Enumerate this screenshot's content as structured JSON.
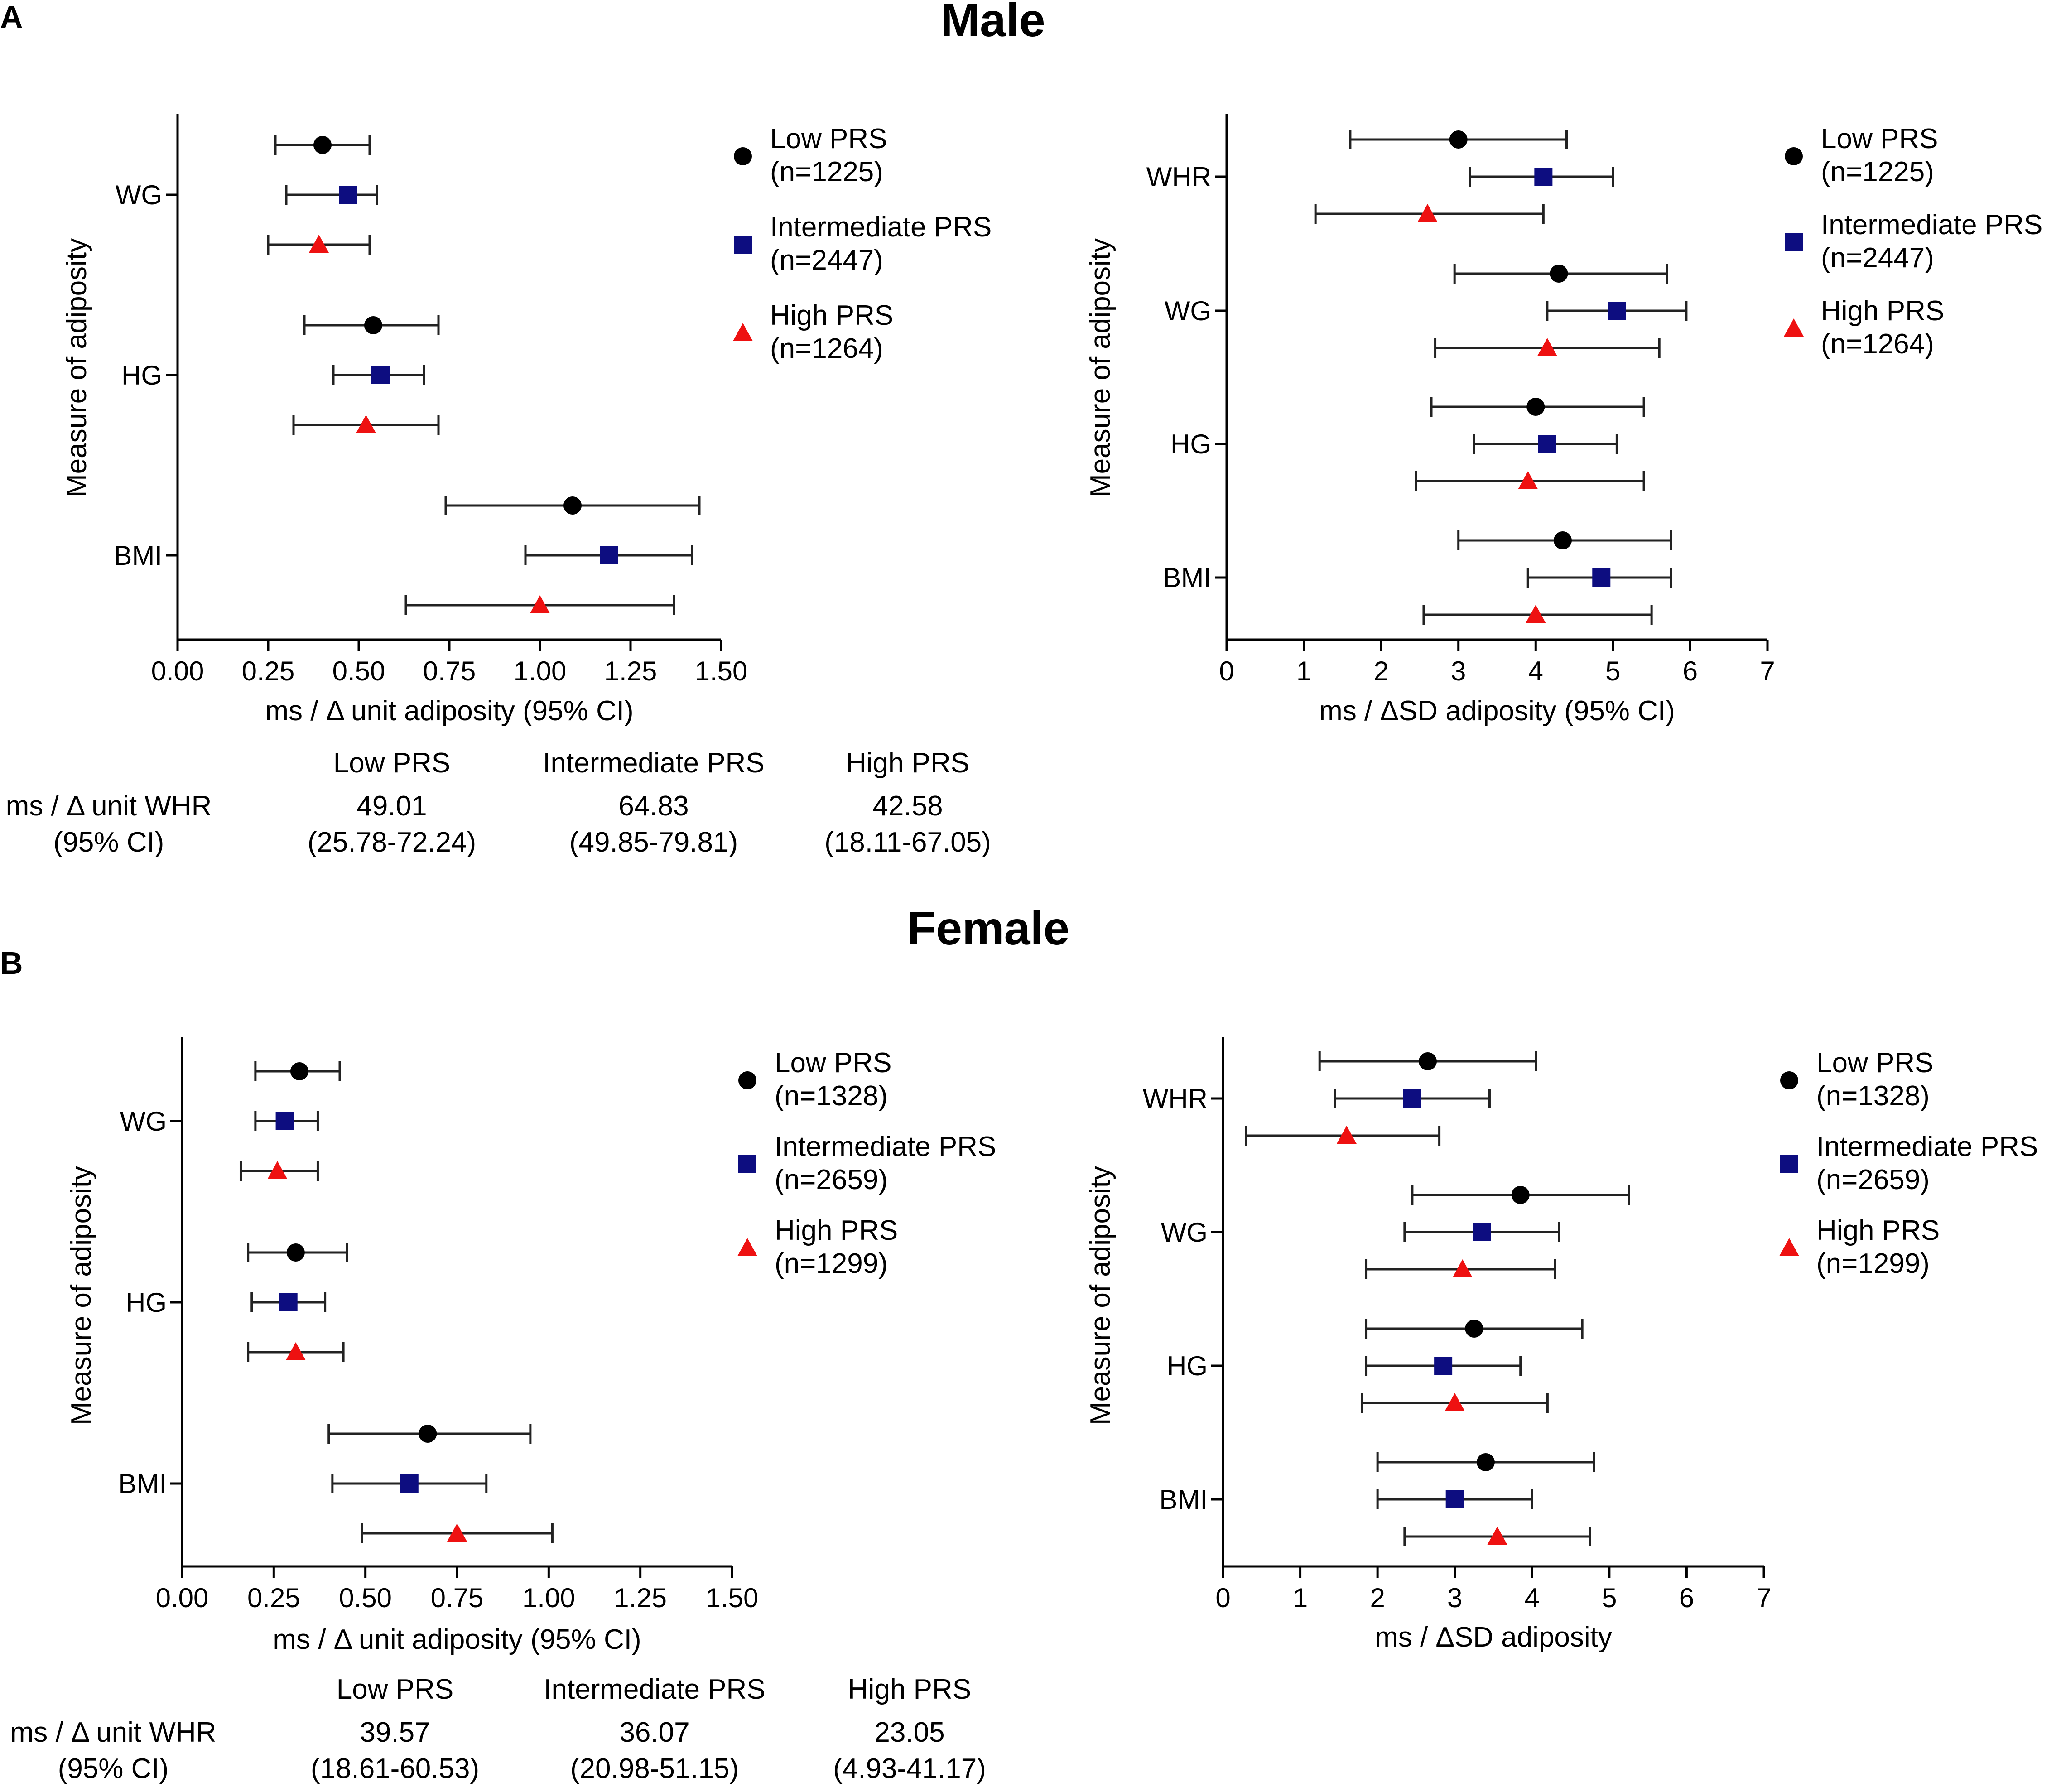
{
  "panels": [
    {
      "letter": "A",
      "title": "Male"
    },
    {
      "letter": "B",
      "title": "Female"
    }
  ],
  "colors": {
    "low": "#000000",
    "intermediate": "#0d0d80",
    "high": "#ee1111"
  },
  "chart_data": [
    {
      "type": "forest",
      "id": "male_unit",
      "title": "Male",
      "xlabel": "ms / Δ unit adiposity (95% CI)",
      "ylabel": "Measure of adiposity",
      "xlim": [
        0,
        1.5
      ],
      "xticks": [
        0,
        0.25,
        0.5,
        0.75,
        1.0,
        1.25,
        1.5
      ],
      "xtick_labels": [
        "0.00",
        "0.25",
        "0.50",
        "0.75",
        "1.00",
        "1.25",
        "1.50"
      ],
      "categories": [
        "WG",
        "HG",
        "BMI"
      ],
      "legend": {
        "position": "right",
        "entries": [
          {
            "group": "low",
            "name": "Low PRS",
            "n": "(n=1225)",
            "marker": "circle"
          },
          {
            "group": "intermediate",
            "name": "Intermediate PRS",
            "n": "(n=2447)",
            "marker": "square"
          },
          {
            "group": "high",
            "name": "High PRS",
            "n": "(n=1264)",
            "marker": "triangle"
          }
        ]
      },
      "series": [
        {
          "group": "low",
          "values": [
            {
              "cat": "WG",
              "est": 0.4,
              "lo": 0.27,
              "hi": 0.53
            },
            {
              "cat": "HG",
              "est": 0.54,
              "lo": 0.35,
              "hi": 0.72
            },
            {
              "cat": "BMI",
              "est": 1.09,
              "lo": 0.74,
              "hi": 1.44
            }
          ]
        },
        {
          "group": "intermediate",
          "values": [
            {
              "cat": "WG",
              "est": 0.47,
              "lo": 0.3,
              "hi": 0.55
            },
            {
              "cat": "HG",
              "est": 0.56,
              "lo": 0.43,
              "hi": 0.68
            },
            {
              "cat": "BMI",
              "est": 1.19,
              "lo": 0.96,
              "hi": 1.42
            }
          ]
        },
        {
          "group": "high",
          "values": [
            {
              "cat": "WG",
              "est": 0.39,
              "lo": 0.25,
              "hi": 0.53
            },
            {
              "cat": "HG",
              "est": 0.52,
              "lo": 0.32,
              "hi": 0.72
            },
            {
              "cat": "BMI",
              "est": 1.0,
              "lo": 0.63,
              "hi": 1.37
            }
          ]
        }
      ],
      "table": {
        "row_label": [
          "ms / Δ unit WHR",
          "(95% CI)"
        ],
        "headers": [
          "Low PRS",
          "Intermediate PRS",
          "High PRS"
        ],
        "values": [
          "49.01",
          "64.83",
          "42.58"
        ],
        "cis": [
          "(25.78-72.24)",
          "(49.85-79.81)",
          "(18.11-67.05)"
        ]
      }
    },
    {
      "type": "forest",
      "id": "male_sd",
      "title": "Male",
      "xlabel": "ms / ΔSD adiposity (95% CI)",
      "ylabel": "Measure of adiposity",
      "xlim": [
        0,
        7
      ],
      "xticks": [
        0,
        1,
        2,
        3,
        4,
        5,
        6,
        7
      ],
      "xtick_labels": [
        "0",
        "1",
        "2",
        "3",
        "4",
        "5",
        "6",
        "7"
      ],
      "categories": [
        "WHR",
        "WG",
        "HG",
        "BMI"
      ],
      "legend": {
        "position": "right",
        "entries": [
          {
            "group": "low",
            "name": "Low PRS",
            "n": "(n=1225)",
            "marker": "circle"
          },
          {
            "group": "intermediate",
            "name": "Intermediate PRS",
            "n": "(n=2447)",
            "marker": "square"
          },
          {
            "group": "high",
            "name": "High PRS",
            "n": "(n=1264)",
            "marker": "triangle"
          }
        ]
      },
      "series": [
        {
          "group": "low",
          "values": [
            {
              "cat": "WHR",
              "est": 3.0,
              "lo": 1.6,
              "hi": 4.4
            },
            {
              "cat": "WG",
              "est": 4.3,
              "lo": 2.95,
              "hi": 5.7
            },
            {
              "cat": "HG",
              "est": 4.0,
              "lo": 2.65,
              "hi": 5.4
            },
            {
              "cat": "BMI",
              "est": 4.35,
              "lo": 3.0,
              "hi": 5.75
            }
          ]
        },
        {
          "group": "intermediate",
          "values": [
            {
              "cat": "WHR",
              "est": 4.1,
              "lo": 3.15,
              "hi": 5.0
            },
            {
              "cat": "WG",
              "est": 5.05,
              "lo": 4.15,
              "hi": 5.95
            },
            {
              "cat": "HG",
              "est": 4.15,
              "lo": 3.2,
              "hi": 5.05
            },
            {
              "cat": "BMI",
              "est": 4.85,
              "lo": 3.9,
              "hi": 5.75
            }
          ]
        },
        {
          "group": "high",
          "values": [
            {
              "cat": "WHR",
              "est": 2.6,
              "lo": 1.15,
              "hi": 4.1
            },
            {
              "cat": "WG",
              "est": 4.15,
              "lo": 2.7,
              "hi": 5.6
            },
            {
              "cat": "HG",
              "est": 3.9,
              "lo": 2.45,
              "hi": 5.4
            },
            {
              "cat": "BMI",
              "est": 4.0,
              "lo": 2.55,
              "hi": 5.5
            }
          ]
        }
      ]
    },
    {
      "type": "forest",
      "id": "female_unit",
      "title": "Female",
      "xlabel": "ms / Δ unit adiposity (95% CI)",
      "ylabel": "Measure of adiposity",
      "xlim": [
        0,
        1.5
      ],
      "xticks": [
        0,
        0.25,
        0.5,
        0.75,
        1.0,
        1.25,
        1.5
      ],
      "xtick_labels": [
        "0.00",
        "0.25",
        "0.50",
        "0.75",
        "1.00",
        "1.25",
        "1.50"
      ],
      "categories": [
        "WG",
        "HG",
        "BMI"
      ],
      "legend": {
        "position": "right",
        "entries": [
          {
            "group": "low",
            "name": "Low PRS",
            "n": "(n=1328)",
            "marker": "circle"
          },
          {
            "group": "intermediate",
            "name": "Intermediate PRS",
            "n": "(n=2659)",
            "marker": "square"
          },
          {
            "group": "high",
            "name": "High PRS",
            "n": "(n=1299)",
            "marker": "triangle"
          }
        ]
      },
      "series": [
        {
          "group": "low",
          "values": [
            {
              "cat": "WG",
              "est": 0.32,
              "lo": 0.2,
              "hi": 0.43
            },
            {
              "cat": "HG",
              "est": 0.31,
              "lo": 0.18,
              "hi": 0.45
            },
            {
              "cat": "BMI",
              "est": 0.67,
              "lo": 0.4,
              "hi": 0.95
            }
          ]
        },
        {
          "group": "intermediate",
          "values": [
            {
              "cat": "WG",
              "est": 0.28,
              "lo": 0.2,
              "hi": 0.37
            },
            {
              "cat": "HG",
              "est": 0.29,
              "lo": 0.19,
              "hi": 0.39
            },
            {
              "cat": "BMI",
              "est": 0.62,
              "lo": 0.41,
              "hi": 0.83
            }
          ]
        },
        {
          "group": "high",
          "values": [
            {
              "cat": "WG",
              "est": 0.26,
              "lo": 0.16,
              "hi": 0.37
            },
            {
              "cat": "HG",
              "est": 0.31,
              "lo": 0.18,
              "hi": 0.44
            },
            {
              "cat": "BMI",
              "est": 0.75,
              "lo": 0.49,
              "hi": 1.01
            }
          ]
        }
      ],
      "table": {
        "row_label": [
          "ms / Δ unit WHR",
          "(95% CI)"
        ],
        "headers": [
          "Low PRS",
          "Intermediate PRS",
          "High PRS"
        ],
        "values": [
          "39.57",
          "36.07",
          "23.05"
        ],
        "cis": [
          "(18.61-60.53)",
          "(20.98-51.15)",
          "(4.93-41.17)"
        ]
      }
    },
    {
      "type": "forest",
      "id": "female_sd",
      "title": "Female",
      "xlabel": "ms / ΔSD adiposity",
      "ylabel": "Measure of adiposity",
      "xlim": [
        0,
        7
      ],
      "xticks": [
        0,
        1,
        2,
        3,
        4,
        5,
        6,
        7
      ],
      "xtick_labels": [
        "0",
        "1",
        "2",
        "3",
        "4",
        "5",
        "6",
        "7"
      ],
      "categories": [
        "WHR",
        "WG",
        "HG",
        "BMI"
      ],
      "legend": {
        "position": "right",
        "entries": [
          {
            "group": "low",
            "name": "Low PRS",
            "n": "(n=1328)",
            "marker": "circle"
          },
          {
            "group": "intermediate",
            "name": "Intermediate PRS",
            "n": "(n=2659)",
            "marker": "square"
          },
          {
            "group": "high",
            "name": "High PRS",
            "n": "(n=1299)",
            "marker": "triangle"
          }
        ]
      },
      "series": [
        {
          "group": "low",
          "values": [
            {
              "cat": "WHR",
              "est": 2.65,
              "lo": 1.25,
              "hi": 4.05
            },
            {
              "cat": "WG",
              "est": 3.85,
              "lo": 2.45,
              "hi": 5.25
            },
            {
              "cat": "HG",
              "est": 3.25,
              "lo": 1.85,
              "hi": 4.65
            },
            {
              "cat": "BMI",
              "est": 3.4,
              "lo": 2.0,
              "hi": 4.8
            }
          ]
        },
        {
          "group": "intermediate",
          "values": [
            {
              "cat": "WHR",
              "est": 2.45,
              "lo": 1.45,
              "hi": 3.45
            },
            {
              "cat": "WG",
              "est": 3.35,
              "lo": 2.35,
              "hi": 4.35
            },
            {
              "cat": "HG",
              "est": 2.85,
              "lo": 1.85,
              "hi": 3.85
            },
            {
              "cat": "BMI",
              "est": 3.0,
              "lo": 2.0,
              "hi": 4.0
            }
          ]
        },
        {
          "group": "high",
          "values": [
            {
              "cat": "WHR",
              "est": 1.6,
              "lo": 0.3,
              "hi": 2.8
            },
            {
              "cat": "WG",
              "est": 3.1,
              "lo": 1.85,
              "hi": 4.3
            },
            {
              "cat": "HG",
              "est": 3.0,
              "lo": 1.8,
              "hi": 4.2
            },
            {
              "cat": "BMI",
              "est": 3.55,
              "lo": 2.35,
              "hi": 4.75
            }
          ]
        }
      ]
    }
  ]
}
